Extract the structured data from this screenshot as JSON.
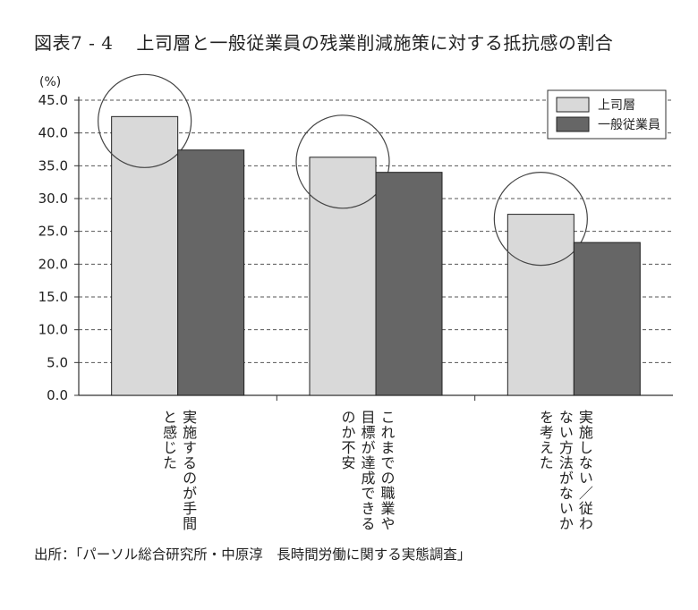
{
  "title": {
    "figure_number": "図表7 - 4",
    "text": "上司層と一般従業員の残業削減施策に対する抵抗感の割合"
  },
  "source": "出所：「パーソル総合研究所・中原淳　長時間労働に関する実態調査」",
  "chart_data": {
    "type": "bar",
    "unit_label": "(%)",
    "ylim": [
      0,
      45
    ],
    "yticks": [
      "0.0",
      "5.0",
      "10.0",
      "15.0",
      "20.0",
      "25.0",
      "30.0",
      "35.0",
      "40.0",
      "45.0"
    ],
    "grid": true,
    "legend_position": "top-right",
    "categories": [
      "実施するのが手間と感じた",
      "これまでの職業や目標が達成できるのか不安",
      "実施しない／従わない方法がないかを考えた"
    ],
    "category_label_lines": [
      [
        "実施するのが手間",
        "と感じた"
      ],
      [
        "これまでの職業や",
        "目標が達成できる",
        "のか不安"
      ],
      [
        "実施しない／従わ",
        "ない方法がないか",
        "を考えた"
      ]
    ],
    "series": [
      {
        "name": "上司層",
        "values": [
          42.5,
          36.3,
          27.6
        ],
        "color": "#d9d9d9"
      },
      {
        "name": "一般従業員",
        "values": [
          37.4,
          34.0,
          23.3
        ],
        "color": "#666666"
      }
    ],
    "highlight_circles_on": "上司層"
  }
}
